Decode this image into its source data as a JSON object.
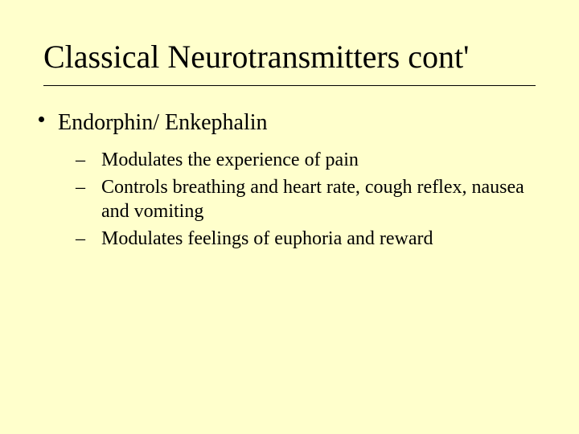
{
  "background_color": "#ffffcc",
  "text_color": "#000000",
  "title": {
    "text": "Classical  Neurotransmitters cont'",
    "fontsize": 40,
    "weight": "normal"
  },
  "rule_color": "#000000",
  "body_fontsize_lvl1": 28,
  "body_fontsize_lvl2": 24,
  "bullets": {
    "lvl1": [
      {
        "text": "Endorphin/ Enkephalin"
      }
    ],
    "lvl2": [
      {
        "text": "Modulates the experience of pain"
      },
      {
        "text": "Controls breathing and heart rate, cough reflex, nausea and vomiting"
      },
      {
        "text": "Modulates feelings of euphoria and reward"
      }
    ]
  },
  "dash": "– "
}
